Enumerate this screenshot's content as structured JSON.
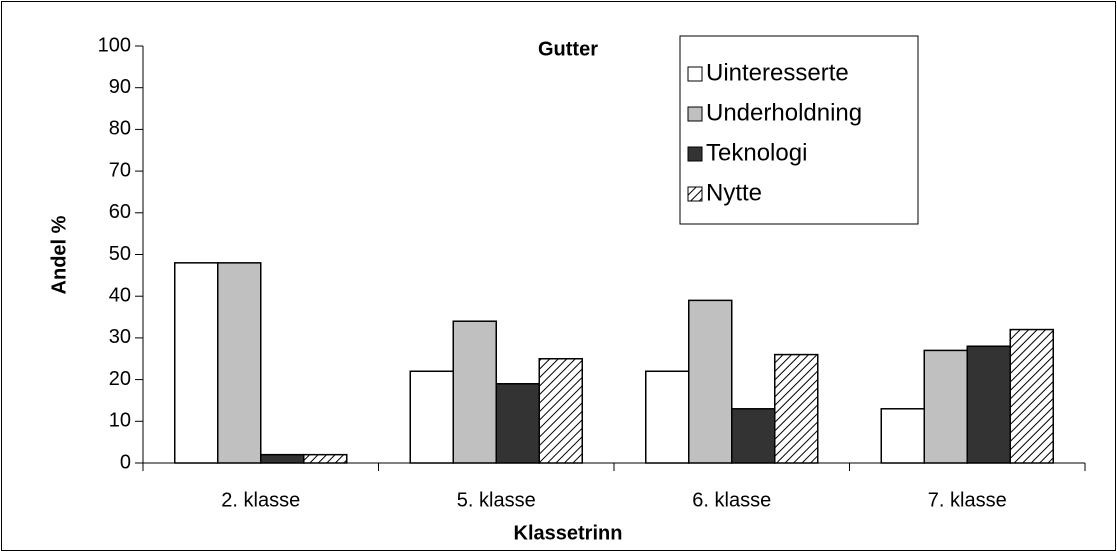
{
  "chart_data": {
    "type": "bar",
    "title": "Gutter",
    "x_label": "Klassetrinn",
    "y_label": "Andel %",
    "categories": [
      "2. klasse",
      "5. klasse",
      "6. klasse",
      "7. klasse"
    ],
    "series": [
      {
        "name": "Uinteresserte",
        "color": "#ffffff",
        "values": [
          48,
          22,
          22,
          13
        ]
      },
      {
        "name": "Underholdning",
        "color": "#c0c0c0",
        "values": [
          48,
          34,
          39,
          27
        ]
      },
      {
        "name": "Teknologi",
        "color": "#333333",
        "values": [
          2,
          19,
          13,
          28
        ]
      },
      {
        "name": "Nytte",
        "color": "#ffffff",
        "hatch": true,
        "values": [
          2,
          25,
          26,
          32
        ]
      }
    ],
    "ylim": [
      0,
      100
    ],
    "yticks": [
      0,
      10,
      20,
      30,
      40,
      50,
      60,
      70,
      80,
      90,
      100
    ],
    "grid": false,
    "legend": "upper right"
  }
}
